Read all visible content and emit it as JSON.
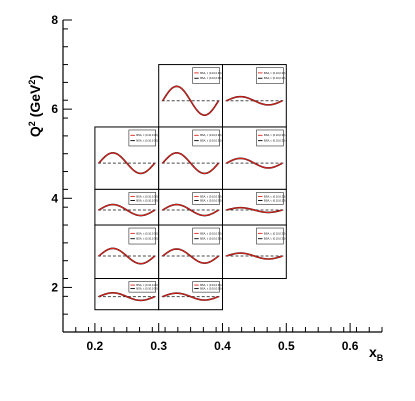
{
  "chart_data": {
    "type": "line",
    "title": "",
    "xlabel_main": "x",
    "xlabel_sub": "B",
    "ylabel_main": "Q",
    "ylabel_sup1": "2",
    "ylabel_unit": " (GeV",
    "ylabel_sup2": "2",
    "ylabel_close": ")",
    "xlim": [
      0.15,
      0.65
    ],
    "ylim": [
      1,
      8
    ],
    "xticks": [
      {
        "value": 0.2,
        "label": "0.2"
      },
      {
        "value": 0.3,
        "label": "0.3"
      },
      {
        "value": 0.4,
        "label": "0.4"
      },
      {
        "value": 0.5,
        "label": "0.5"
      },
      {
        "value": 0.6,
        "label": "0.6"
      }
    ],
    "yticks": [
      {
        "value": 2,
        "label": "2"
      },
      {
        "value": 4,
        "label": "4"
      },
      {
        "value": 6,
        "label": "6"
      },
      {
        "value": 8,
        "label": "8"
      }
    ],
    "grid": false,
    "panel_series_colors": {
      "fit": "#000000",
      "model": "#e0211a",
      "reference": "#4a4a4a"
    },
    "panels": [
      {
        "x_range": [
          0.3,
          0.4
        ],
        "q2_range": [
          5.6,
          7.0
        ],
        "amplitude": 0.42,
        "legend": [
          "BSA, t: (0.10,0.30)",
          "BSA, t: (0.10,0.30)"
        ]
      },
      {
        "x_range": [
          0.4,
          0.5
        ],
        "q2_range": [
          5.6,
          7.0
        ],
        "amplitude": 0.12,
        "legend": [
          "BSA, t: (0.10,0.30)",
          "BSA, t: (0.10,0.30)"
        ]
      },
      {
        "x_range": [
          0.2,
          0.3
        ],
        "q2_range": [
          4.2,
          5.6
        ],
        "amplitude": 0.3,
        "legend": [
          "BSA, t: (0.10,0.30)",
          "BSA, t: (0.10,0.30)"
        ]
      },
      {
        "x_range": [
          0.3,
          0.4
        ],
        "q2_range": [
          4.2,
          5.6
        ],
        "amplitude": 0.3,
        "legend": [
          "BSA, t: (0.10,0.30)",
          "BSA, t: (0.10,0.30)"
        ]
      },
      {
        "x_range": [
          0.4,
          0.5
        ],
        "q2_range": [
          4.2,
          5.6
        ],
        "amplitude": 0.14,
        "legend": [
          "BSA, t: (0.10,0.30)",
          "BSA, t: (0.10,0.30)"
        ]
      },
      {
        "x_range": [
          0.2,
          0.3
        ],
        "q2_range": [
          3.4,
          4.2
        ],
        "amplitude": 0.28,
        "legend": [
          "BSA, t: (0.10,0.30)",
          "BSA, t: (0.10,0.30)"
        ]
      },
      {
        "x_range": [
          0.3,
          0.4
        ],
        "q2_range": [
          3.4,
          4.2
        ],
        "amplitude": 0.28,
        "legend": [
          "BSA, t: (0.10,0.30)",
          "BSA, t: (0.10,0.30)"
        ]
      },
      {
        "x_range": [
          0.4,
          0.5
        ],
        "q2_range": [
          3.4,
          4.2
        ],
        "amplitude": 0.12,
        "legend": [
          "BSA, t: (0.10,0.30)",
          "BSA, t: (0.10,0.30)"
        ]
      },
      {
        "x_range": [
          0.2,
          0.3
        ],
        "q2_range": [
          2.2,
          3.4
        ],
        "amplitude": 0.26,
        "legend": [
          "BSA, t: (0.10,0.30)",
          "BSA, t: (0.10,0.30)"
        ]
      },
      {
        "x_range": [
          0.3,
          0.4
        ],
        "q2_range": [
          2.2,
          3.4
        ],
        "amplitude": 0.24,
        "legend": [
          "BSA, t: (0.10,0.30)",
          "BSA, t: (0.10,0.30)"
        ]
      },
      {
        "x_range": [
          0.4,
          0.5
        ],
        "q2_range": [
          2.2,
          3.4
        ],
        "amplitude": 0.1,
        "legend": [
          "BSA, t: (0.10,0.30)",
          "BSA, t: (0.10,0.30)"
        ]
      },
      {
        "x_range": [
          0.2,
          0.3
        ],
        "q2_range": [
          1.5,
          2.2
        ],
        "amplitude": 0.22,
        "legend": [
          "BSA, t: (0.10,0.30)",
          "BSA, t: (0.10,0.30)"
        ]
      },
      {
        "x_range": [
          0.3,
          0.4
        ],
        "q2_range": [
          1.5,
          2.2
        ],
        "amplitude": 0.2,
        "legend": [
          "BSA, t: (0.10,0.30)",
          "BSA, t: (0.10,0.30)"
        ]
      }
    ]
  }
}
